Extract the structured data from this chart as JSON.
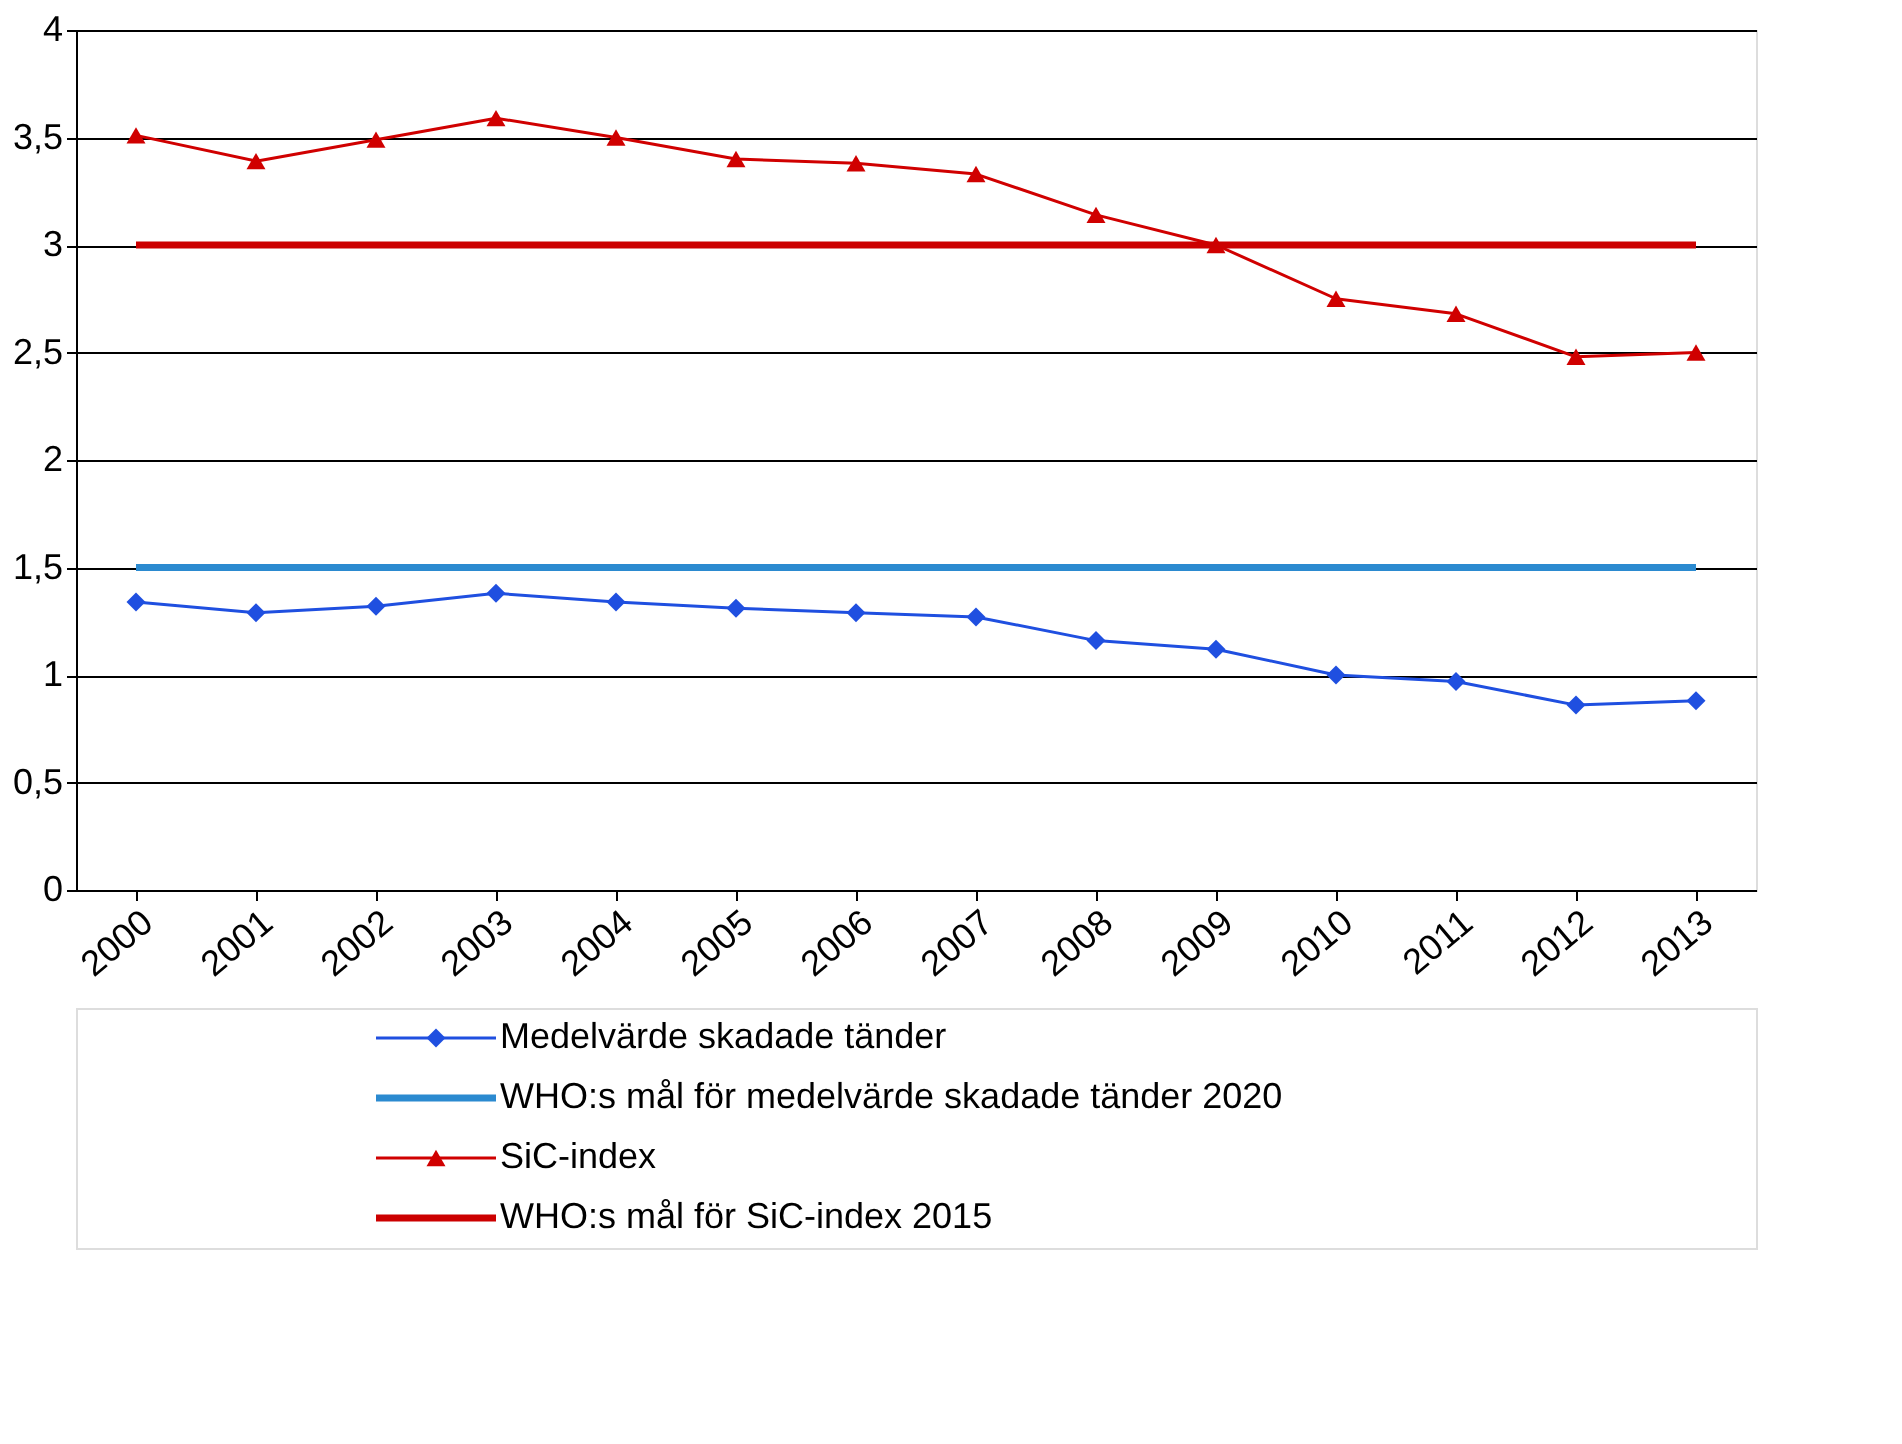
{
  "chart_data": {
    "type": "line",
    "categories": [
      "2000",
      "2001",
      "2002",
      "2003",
      "2004",
      "2005",
      "2006",
      "2007",
      "2008",
      "2009",
      "2010",
      "2011",
      "2012",
      "2013"
    ],
    "series": [
      {
        "name": "Medelvärde skadade tänder",
        "color": "#1f4fe0",
        "marker": "diamond",
        "values": [
          1.34,
          1.29,
          1.32,
          1.38,
          1.34,
          1.31,
          1.29,
          1.27,
          1.16,
          1.12,
          1.0,
          0.97,
          0.86,
          0.88
        ]
      },
      {
        "name": "WHO:s mål för medelvärde skadade tänder 2020",
        "color": "#2b8ad0",
        "marker": "none",
        "values": [
          1.5,
          1.5,
          1.5,
          1.5,
          1.5,
          1.5,
          1.5,
          1.5,
          1.5,
          1.5,
          1.5,
          1.5,
          1.5,
          1.5
        ]
      },
      {
        "name": "SiC-index",
        "color": "#d00000",
        "marker": "triangle",
        "values": [
          3.51,
          3.39,
          3.49,
          3.59,
          3.5,
          3.4,
          3.38,
          3.33,
          3.14,
          3.0,
          2.75,
          2.68,
          2.48,
          2.5
        ]
      },
      {
        "name": "WHO:s mål för SiC-index 2015",
        "color": "#cc0000",
        "marker": "none",
        "values": [
          3,
          3,
          3,
          3,
          3,
          3,
          3,
          3,
          3,
          3,
          3,
          3,
          3,
          3
        ]
      }
    ],
    "ylim": [
      0,
      4
    ],
    "yticks": [
      0,
      {
        "value": 0.5,
        "label": "0,5"
      },
      1,
      {
        "value": 1.5,
        "label": "1,5"
      },
      2,
      {
        "value": 2.5,
        "label": "2,5"
      },
      3,
      {
        "value": 3.5,
        "label": "3,5"
      },
      4
    ],
    "grid": "y",
    "legend": "bottom"
  }
}
